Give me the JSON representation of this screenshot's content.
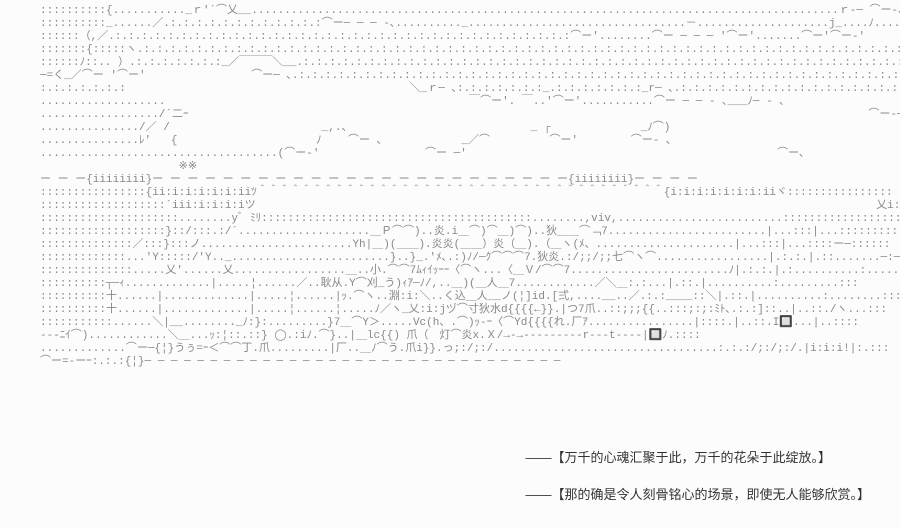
{
  "ascii": {
    "lines": [
      "::::::::::{..........._ｒ'´⌒乂__.........................................................................................ｒ-─ ⌒ー-､",
      "::::::::::_......／.:.:.:.:.:.:.:.:.:.:.:.:⌒ー─ ─ ─ -､.........._.................................－....................j_....ﾉ........⌒ー ──ー-",
      "::::::（,／.:.:.:.:.:.:.:.:.:.:.:.:.:.:.:.:.:.:.:.:.:.:.:.:.:.:.:.:.:.:.:.:.:.:.:⌒ー'........⌒ー ─ ─ ─ '⌒ー'.......⌒ー'⌒ー-'",
      ":::::::{:::::ヽ.:.:.:.:.:.:.:.:.:.:.:.:.:.:.:.:.:.:.:.:.:.:.:.:.:.:.:.:.:.:.:.:.:.:.:.:.:.:.:.:.:.:.:.:.:.:.:.:.:.:.:.:.:.:.:.:.:.:.:.:.:.:.:.:.:.:.:.:.:.:.:.:.:.:.:.:.:.:.:.:.:.:.:.:.:.:.:.:",
      "::::::ﾉ::.. ）.:.:.:.:.:.:.:_／￣￣￣＼__.:.:.:.:.:.:.:.:.:.:.:.:.:.:.:.:.:.:.:.:.:.:.:.:.:.:.:.:.:.:.:.:.:.:.:.:.:.:.:.:.:.:.:.:.:.:.:.:.:.:.:.:.:.:.:.:.:.:.:.:.:.:.:.:.:.:.:.:.:",
      "─=く_／⌒ー '⌒ー'                ⌒ー─ ､.:.:.:.:.:.:.:.:.:.:.:.:.:.:.:.:.:.:.:.:.:.:.:.:.:.:.:.:.:.:.:.:.:.:.:.:.:.:.:.:.:.:.:.:.:.:.:.:.:.:.:.:.:.:.:.:.:.:.:_ｒ‐",
      ":.:.:.:.:.:.:                                           ＼_ｒ─ ､:.:.:.:.:.:.:_.:.:.:.:.:.:.:_r─ ､.:.:.:.:.:.:.:.:.:.:.:.:.:.:.:.:.:.:.:_ﾉ⌒'",
      "...................                                              ￣⌒ー'. ￣..'⌒ー'...........⌒ー ─ ─ - ､___ﾉ─ - ､",
      "................../´二ｰ                                                                                                       ⌒ー-─ ",
      ".............../／ /                       _,.、                           _ ┌　            _ﾉ⌒)                                       ⌒ー─",
      "...............ﾚ'   {                     ﾉ    ⌒ー ､            _／⌒         ⌒ー'        ⌒ー- ､                                      ",
      "....................................(⌒ー-'                ⌒ー ─'                                               ⌒ー､",
      "                     ※※                                                                                                            ※※",
      "ー ー ー{iiiiiiii}ー ー ー ー ー ー ー ー ー ー ー ー ー ー ー ー ー ー ー ー ー ー ー ー{iiiiiiii}ー ー ー ー",
      "::::::::::::::::{ii:i:i:i:i:i:iiﾂ＾＾＾＾＾＾＾＾＾＾＾＾＾＾＾＾＾＾＾＾＾＾＾＾＾＾＾＾＾＾＾＾＾＾＾＾＾{i:i:i:i:i:i:i:iiヾ::::::::::::::::",
      ":::::::::::::::::::´iii:i:i:i:iツ                                                                                              乂i:i:i:i:i:iノ::::::::::::::::::",
      ":::::::::::::::::::::........yﾞ ﾐﾘ:::::::::::::::::::::::::::::::::::::::::........,viv,.........................::::::::::::::::::::::::::::::::::ヾii:i:i{:::::::::::::::::::::",
      ":::::::::::::::::::}::/:::.:/´....................＿Ｐ⌒⌒)..炎.i＿⌒)⌒＿)⌒)..狄＿＿⌒﹁7........................|...:::|...::::::::::::::::::::::",
      "::::::::::::::／:::}:::ノ.......................Yh|＿)(＿＿).炎炎(＿＿）炎（＿).（＿ヽ(ﾒ、.....................|...:::|...::::ー─::::::",
      ":::::::::::::...'Y:::::/'Y.._........................}..}_.'ﾒ､.:)ﾉ/─ｸ⌒⌒⌒7.狄炎.:/;;/;;七⌒ヽ⌒.................|.:.:.|.::.......─:─:::",
      "::::::::::::::.....乂'......乂.................＿..小.⌒⌒7ﾑｨｲｯｰｰ〈⌒ヽ...〈＿Ｖ/⌒⌒7........................ﾉ|.:.:.|.:..........:.........:::",
      "::::::::::┬─ｨ.............|.....¦......／..耿从.Y⌒刈_う)ｨｱ─ﾉ/,..＿)(＿人＿7............／＼＿:.:...|.::.|..........:.........:::",
      "::::::::::十......|.............|.....¦......|ｯ.⌒ヽ..淵:i:＼..く込＿人__ノ(¦]id.[弍,....__..／.:.:____::＼|.::.|..........:........:::",
      "::::::::::十......|.............|.....¦......¦.....ﾉ／ヽ_乂:i:jヅ⌒寸狄水d{{{{←}}.|つ7爪..::;;;{{..:::;:;:ﾐﾄ､.:.:]::..|..::./ヽ...:::",
      ":::::::::::......＼|__........_ﾉ:}:.........}7＿⌒Y＞.....Vc(h、.⌒)ｯ-ｰ〈⌒Yd{{{{れ.厂ｱ................|::::.|..::.I🔲...|..:::: ",
      "---ﾆｲ⌒)............＼＿...ｯ:¦::.::} ◯.:iﾉ.⌒}..|＿lc{{) 爪（　灯⌒炎x.Ｘ/→-→---------r‐--t----|🔲ﾉ.::::",
      ".............⌒ー─{¦}うぅ=ｰ＜⌒⌒丁.爪.........|厂..＿ﾉ⌒う.爪i}}.っ;:/;:/..................................:.:.:/;:/;:/.|i:i:i!|:.:::",
      "⌒ー=-ーｰ:.:.:{¦}─ ─ ─ ─ ─ ─ ─ ─ ─ ─ ─ ─ ─ ─ ─ ─ ─ ─ ─ ─ ─ ─ ─ ─ ─ ─ ─ ─ ─ ─ ─ ─"
    ],
    "text_color": "#888888",
    "font_size": 11,
    "line_height": 13,
    "background_color": "#fcfcfc"
  },
  "captions": {
    "line1": "――【万千的心魂汇聚于此，万千的花朵于此绽放。】",
    "line2": "――【那的确是令人刻骨铭心的场景，即使无人能够欣赏。】",
    "text_color": "#333333",
    "font_size": 13
  }
}
